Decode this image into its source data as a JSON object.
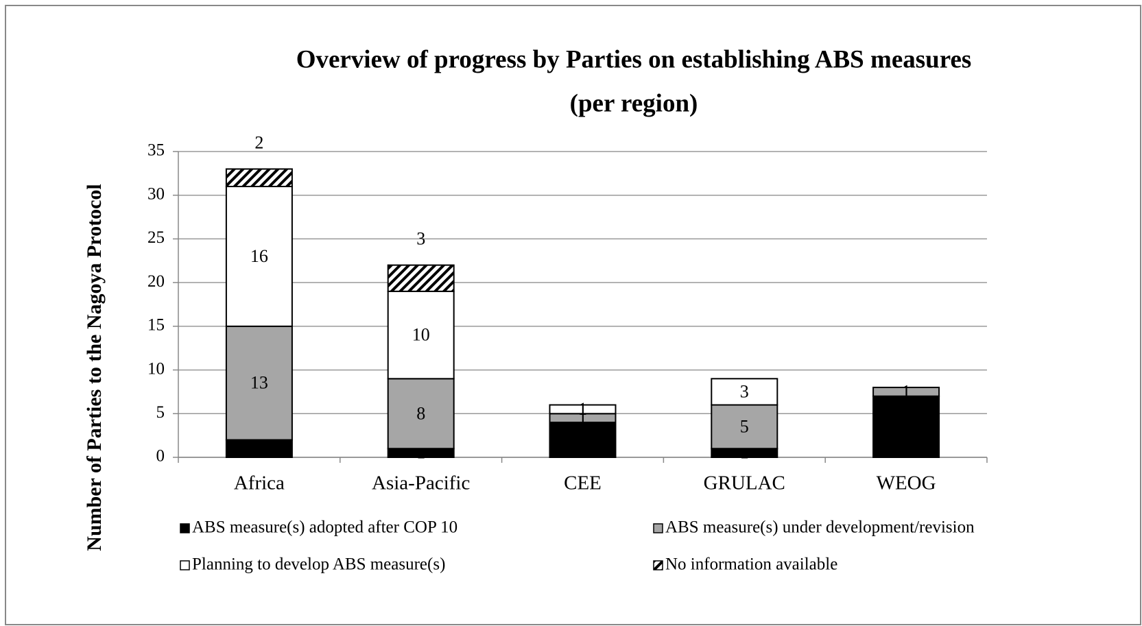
{
  "chart_data": {
    "type": "stacked_bar",
    "title": "Overview of progress by Parties on establishing ABS measures",
    "subtitle": "(per region)",
    "y_label": "Number of Parties to the Nagoya Protocol",
    "categories": [
      "Africa",
      "Asia-Pacific",
      "CEE",
      "GRULAC",
      "WEOG"
    ],
    "series": [
      {
        "name": "ABS measure(s) adopted after COP 10",
        "color": "#000000",
        "values": [
          2,
          1,
          4,
          1,
          7
        ]
      },
      {
        "name": "ABS measure(s) under development/revision",
        "color": "#a6a6a6",
        "values": [
          13,
          8,
          1,
          5,
          1
        ]
      },
      {
        "name": "Planning to develop ABS measure(s)",
        "color": "#ffffff",
        "values": [
          16,
          10,
          1,
          3,
          0
        ]
      },
      {
        "name": "No information available",
        "color": "#ffffff",
        "hatch": true,
        "values": [
          2,
          3,
          0,
          0,
          0
        ]
      }
    ],
    "ylim": [
      0,
      35
    ],
    "yticks": [
      0,
      5,
      10,
      15,
      20,
      25,
      30,
      35
    ],
    "grid": true,
    "legend": "bottom"
  }
}
